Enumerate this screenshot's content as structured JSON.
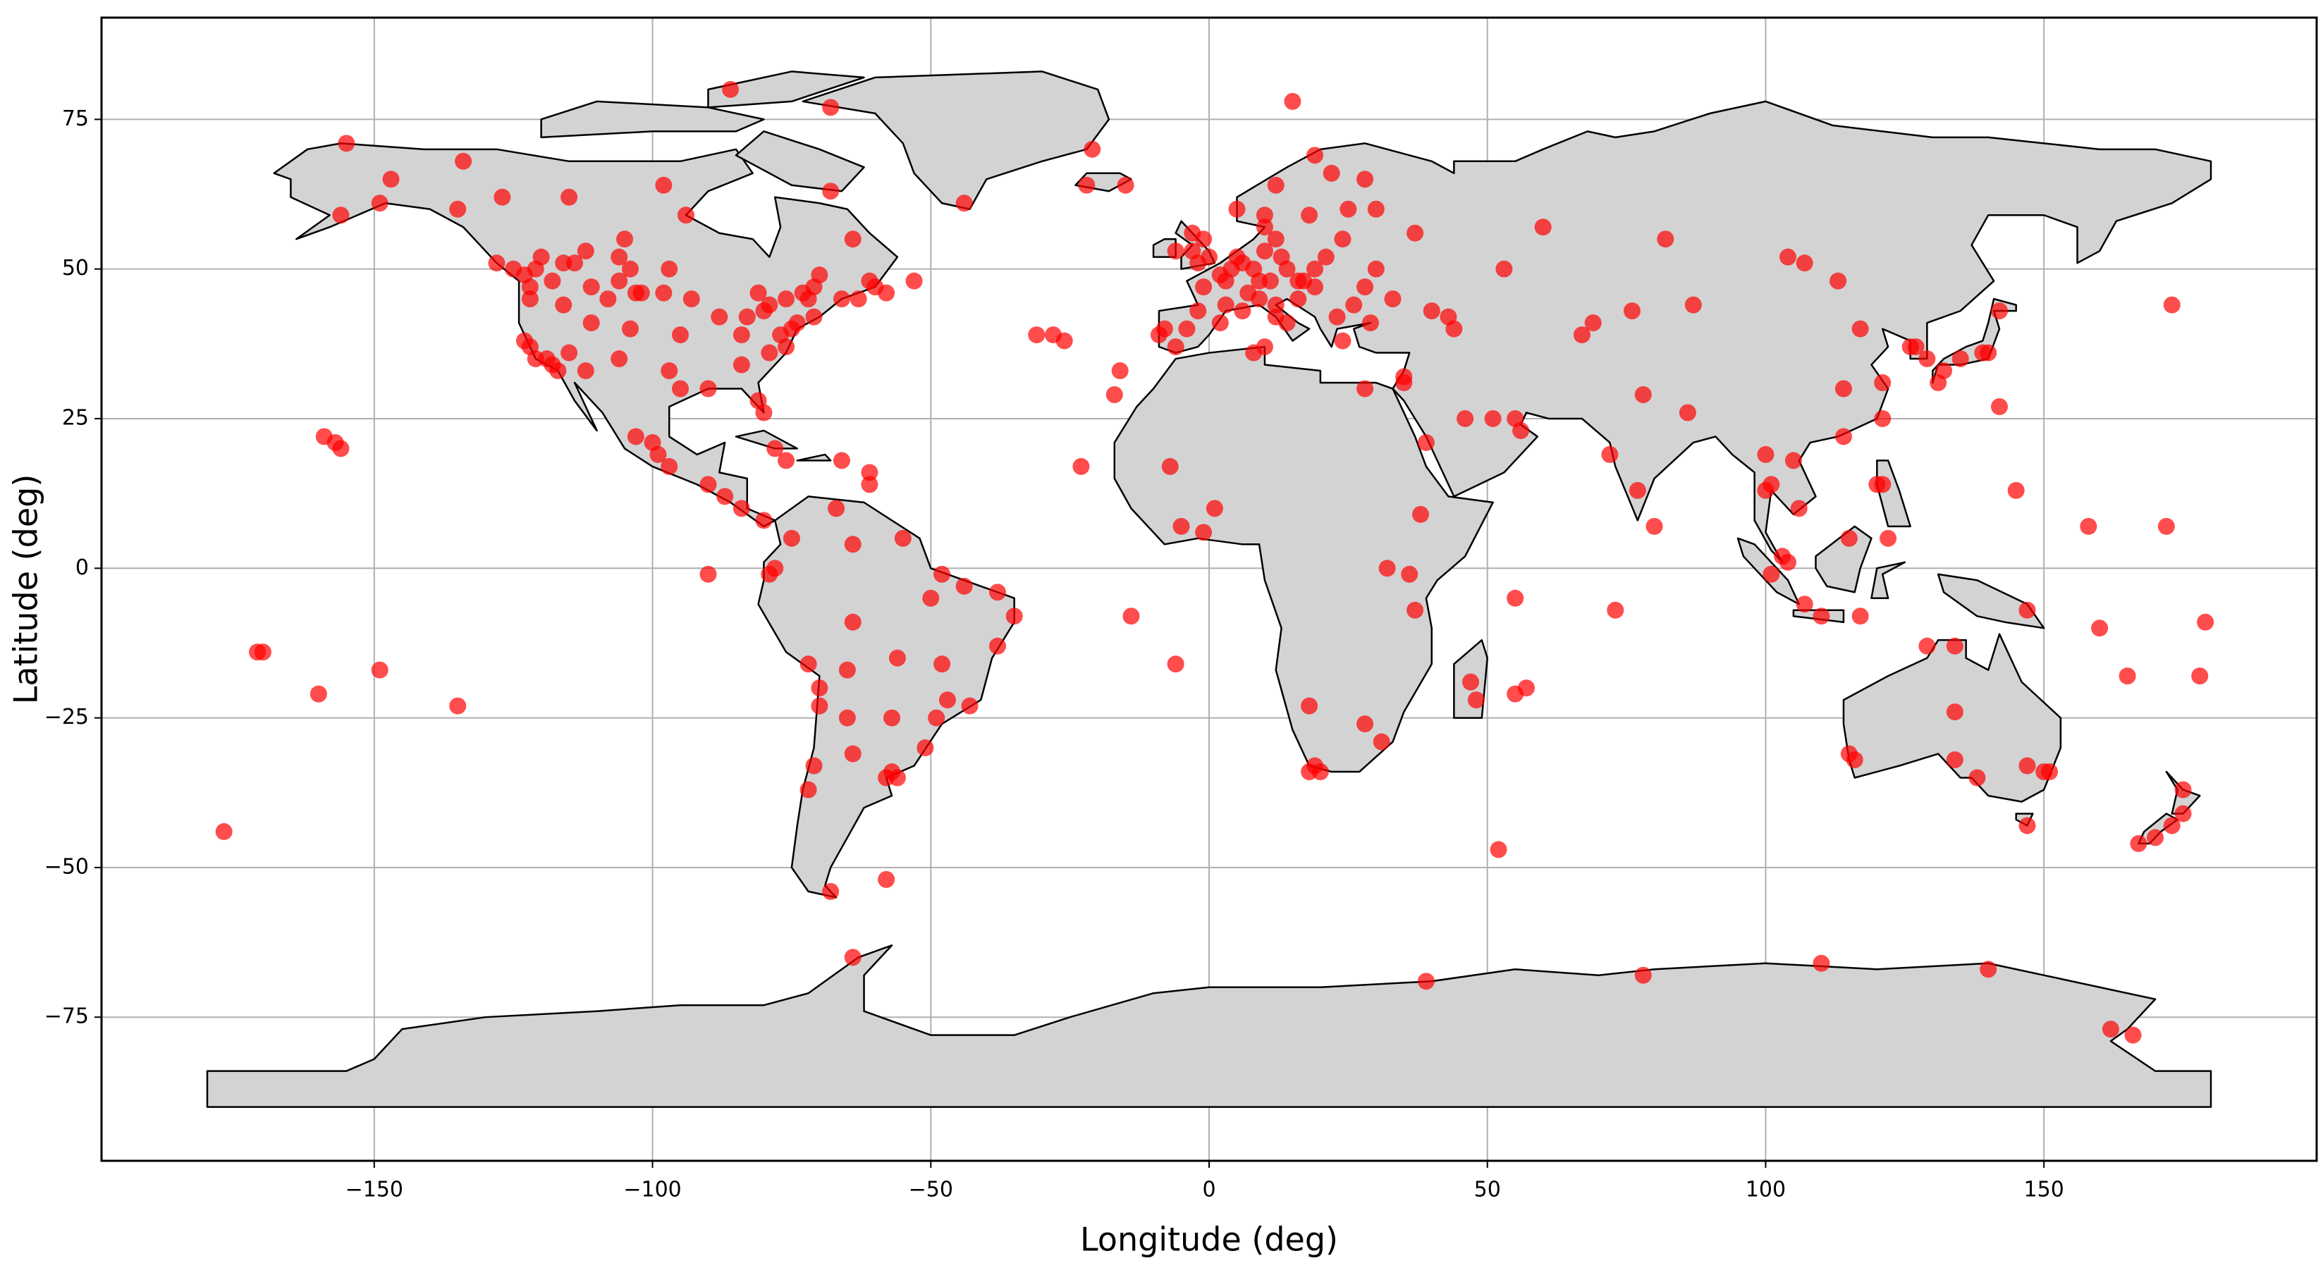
{
  "chart_data": {
    "type": "scatter",
    "xlabel": "Longitude (deg)",
    "ylabel": "Latitude (deg)",
    "color": "#ff0000",
    "grid": true,
    "xlim": [
      -199,
      199
    ],
    "ylim": [
      -99,
      92
    ],
    "xticks": [
      {
        "value": -150,
        "label": "−150"
      },
      {
        "value": -100,
        "label": "−100"
      },
      {
        "value": -50,
        "label": "−50"
      },
      0,
      50,
      100,
      150
    ],
    "yticks": [
      {
        "value": -75,
        "label": "−75"
      },
      {
        "value": -50,
        "label": "−50"
      },
      {
        "value": -25,
        "label": "−25"
      },
      0,
      25,
      50,
      75
    ],
    "x": [
      -155,
      -147,
      -149,
      -156,
      -134,
      -135,
      -127,
      -115,
      -116,
      -123,
      -125,
      -121,
      -118,
      -120,
      -114,
      -106,
      -97,
      -104,
      -106,
      -111,
      -103,
      -98,
      -93,
      -88,
      -95,
      -104,
      -111,
      -116,
      -122,
      -122,
      -123,
      -122,
      -121,
      -118,
      -117,
      -119,
      -115,
      -112,
      -106,
      -97,
      -95,
      -90,
      -84,
      -81,
      -80,
      -84,
      -81,
      -83,
      -80,
      -79,
      -76,
      -73,
      -71,
      -66,
      -63,
      -60,
      -53,
      -74,
      -71,
      -77,
      -75,
      -76,
      -79,
      -64,
      -68,
      -98,
      -94,
      -86,
      -68,
      -58,
      -61,
      -70,
      -72,
      -105,
      -102,
      -108,
      -112,
      -128,
      -100,
      -103,
      -99,
      -97,
      -90,
      -87,
      -84,
      -80,
      -78,
      -76,
      -66,
      -61,
      -61,
      -159,
      -157,
      -156,
      -171,
      -170,
      -160,
      -149,
      -135,
      -177,
      -90,
      -44,
      -21,
      -22,
      -15,
      -75,
      -67,
      -64,
      -55,
      -78,
      -79,
      -72,
      -64,
      -48,
      -44,
      -38,
      -35,
      -38,
      -48,
      -56,
      -65,
      -70,
      -70,
      -65,
      -64,
      -57,
      -49,
      -51,
      -58,
      -56,
      -57,
      -71,
      -72,
      -68,
      -58,
      -64,
      -47,
      -43,
      -50,
      -31,
      -28,
      -26,
      -16,
      -17,
      -23,
      -14,
      -6,
      -8,
      -9,
      -4,
      -6,
      -2,
      2,
      3,
      -1,
      2,
      5,
      4,
      6,
      8,
      9,
      11,
      13,
      10,
      12,
      10,
      18,
      25,
      24,
      21,
      19,
      17,
      14,
      16,
      12,
      12,
      14,
      9,
      7,
      6,
      3,
      16,
      23,
      24,
      29,
      19,
      26,
      28,
      30,
      33,
      37,
      30,
      22,
      19,
      15,
      5,
      10,
      -3,
      -2,
      0,
      -6,
      -3,
      -1,
      12,
      28,
      40,
      43,
      44,
      35,
      35,
      39,
      46,
      51,
      55,
      56,
      53,
      60,
      82,
      76,
      69,
      67,
      87,
      78,
      77,
      80,
      86,
      72,
      73,
      104,
      107,
      113,
      117,
      121,
      114,
      114,
      121,
      120,
      121,
      127,
      126,
      129,
      131,
      132,
      139,
      140,
      135,
      142,
      142,
      145,
      158,
      172,
      173,
      106,
      101,
      103,
      104,
      101,
      107,
      110,
      117,
      122,
      115,
      134,
      129,
      134,
      115,
      116,
      134,
      138,
      147,
      150,
      151,
      147,
      175,
      175,
      173,
      170,
      167,
      160,
      165,
      178,
      179,
      147,
      105,
      100,
      100,
      -5,
      -1,
      1,
      -7,
      8,
      10,
      28,
      38,
      32,
      36,
      37,
      18,
      28,
      18,
      19,
      31,
      47,
      48,
      57,
      55,
      55,
      52,
      39,
      78,
      110,
      140,
      162,
      166,
      20
    ],
    "y": [
      71,
      65,
      61,
      59,
      68,
      60,
      62,
      62,
      51,
      49,
      50,
      50,
      48,
      52,
      51,
      52,
      50,
      50,
      48,
      47,
      46,
      46,
      45,
      42,
      39,
      40,
      41,
      44,
      47,
      45,
      38,
      37,
      35,
      34,
      33,
      35,
      36,
      33,
      35,
      33,
      30,
      30,
      34,
      28,
      26,
      39,
      46,
      42,
      43,
      44,
      45,
      46,
      47,
      45,
      45,
      47,
      48,
      41,
      42,
      39,
      40,
      37,
      36,
      55,
      63,
      64,
      59,
      80,
      77,
      46,
      48,
      49,
      45,
      55,
      46,
      45,
      53,
      51,
      21,
      22,
      19,
      17,
      14,
      12,
      10,
      8,
      20,
      18,
      18,
      16,
      14,
      22,
      21,
      20,
      -14,
      -14,
      -21,
      -17,
      -23,
      -44,
      -1,
      61,
      70,
      64,
      64,
      5,
      10,
      4,
      5,
      0,
      -1,
      -16,
      -9,
      -1,
      -3,
      -4,
      -8,
      -13,
      -16,
      -15,
      -17,
      -20,
      -23,
      -25,
      -31,
      -25,
      -25,
      -30,
      -35,
      -35,
      -34,
      -33,
      -37,
      -54,
      -52,
      -65,
      -22,
      -23,
      -5,
      39,
      39,
      38,
      33,
      29,
      17,
      -8,
      -16,
      40,
      39,
      40,
      37,
      43,
      41,
      48,
      47,
      49,
      52,
      50,
      51,
      50,
      48,
      48,
      52,
      53,
      55,
      57,
      59,
      60,
      55,
      52,
      50,
      48,
      50,
      45,
      44,
      42,
      41,
      45,
      46,
      43,
      44,
      48,
      42,
      38,
      41,
      47,
      44,
      47,
      50,
      45,
      56,
      60,
      66,
      69,
      78,
      60,
      59,
      53,
      51,
      52,
      53,
      56,
      55,
      64,
      65,
      43,
      42,
      40,
      32,
      31,
      21,
      25,
      25,
      25,
      23,
      50,
      57,
      55,
      43,
      41,
      39,
      44,
      29,
      13,
      7,
      26,
      19,
      -7,
      52,
      51,
      48,
      40,
      31,
      30,
      22,
      25,
      14,
      14,
      37,
      37,
      35,
      31,
      33,
      36,
      36,
      35,
      43,
      27,
      13,
      7,
      7,
      44,
      10,
      14,
      2,
      1,
      -1,
      -6,
      -8,
      -8,
      5,
      5,
      -13,
      -13,
      -24,
      -31,
      -32,
      -32,
      -35,
      -33,
      -34,
      -34,
      -43,
      -37,
      -41,
      -43,
      -45,
      -46,
      -10,
      -18,
      -18,
      -9,
      -7,
      18,
      13,
      19,
      7,
      6,
      10,
      17,
      36,
      37,
      30,
      9,
      0,
      -1,
      -7,
      -23,
      -26,
      -34,
      -33,
      -29,
      -19,
      -22,
      -20,
      -21,
      -5,
      -47,
      -69,
      -68,
      -66,
      -67,
      -77,
      -78,
      -34
    ]
  }
}
